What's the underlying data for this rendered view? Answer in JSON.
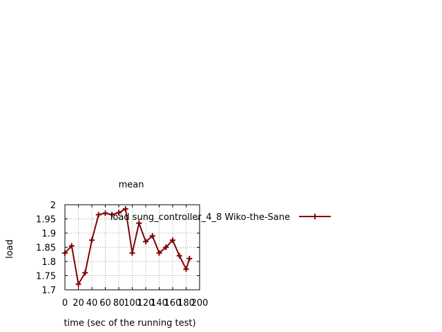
{
  "chart_data": {
    "type": "line",
    "title": "mean",
    "xlabel": "time (sec of the running test)",
    "ylabel": "load",
    "xlim": [
      0,
      200
    ],
    "ylim": [
      1.7,
      2.0
    ],
    "x_ticks": [
      "0",
      "20",
      "40",
      "60",
      "80",
      "100",
      "120",
      "140",
      "160",
      "180",
      "200"
    ],
    "y_ticks": [
      "1.7",
      "1.75",
      "1.8",
      "1.85",
      "1.9",
      "1.95",
      "2"
    ],
    "grid": true,
    "legend_position": "top-right",
    "series": [
      {
        "name": "load sung_controller_4_8 Wiko-the-Sane",
        "color": "#800000",
        "marker": "plus",
        "x": [
          0,
          10,
          20,
          30,
          40,
          50,
          60,
          70,
          80,
          90,
          100,
          110,
          120,
          130,
          140,
          150,
          160,
          170,
          180,
          185
        ],
        "y": [
          1.83,
          1.855,
          1.72,
          1.76,
          1.875,
          1.965,
          1.97,
          1.965,
          1.972,
          1.985,
          1.83,
          1.935,
          1.87,
          1.89,
          1.83,
          1.85,
          1.875,
          1.82,
          1.773,
          1.81
        ]
      }
    ]
  }
}
